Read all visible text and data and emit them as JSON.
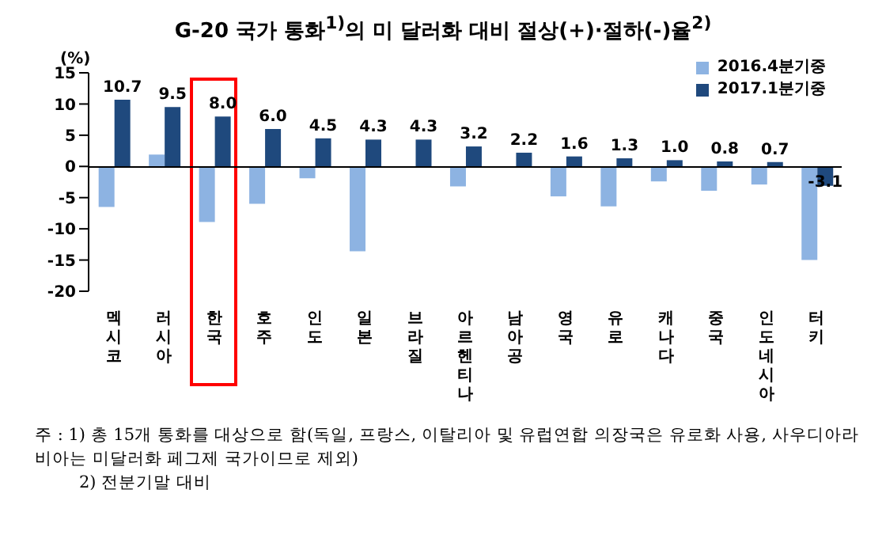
{
  "chart_data": {
    "type": "bar",
    "title": "G-20 국가 통화$^{1)}$의 미 달러화 대비 절상(+)·절하(-)율$^{2)}$",
    "ylabel": "(%)",
    "categories": [
      "멕시코",
      "러시아",
      "한국",
      "호주",
      "인도",
      "일본",
      "브라질",
      "아르헨티나",
      "남아공",
      "영국",
      "유로",
      "캐나다",
      "중국",
      "인도네시아",
      "터키"
    ],
    "series": [
      {
        "name": "2016.4분기중",
        "color": "#8db3e2",
        "values": [
          -6.5,
          1.9,
          -8.9,
          -6.0,
          -1.9,
          -13.6,
          null,
          -3.2,
          0,
          -4.8,
          -6.4,
          -2.4,
          -3.9,
          -2.9,
          -15.0
        ]
      },
      {
        "name": "2017.1분기중",
        "color": "#1f497d",
        "values": [
          10.7,
          9.5,
          8.0,
          6.0,
          4.5,
          4.3,
          4.3,
          3.2,
          2.2,
          1.6,
          1.3,
          1.0,
          0.8,
          0.7,
          -3.1
        ],
        "value_labels": [
          "10.7",
          "9.5",
          "8.0",
          "6.0",
          "4.5",
          "4.3",
          "4.3",
          "3.2",
          "2.2",
          "1.6",
          "1.3",
          "1.0",
          "0.8",
          "0.7",
          "-3.1"
        ]
      }
    ],
    "ylim": [
      -20,
      15
    ],
    "yticks": [
      -20,
      -15,
      -10,
      -5,
      0,
      5,
      10,
      15
    ],
    "grid": false,
    "legend": "top right",
    "annotations": [
      "주 : 1) 총 15개 통화를 대상으로 함(독일, 프랑스, 이탈리아 및 유럽연합 의장국은 유로화 사용, 사우디아라비아는 미달러화 페그제 국가이므로 제외)",
      "2) 전분기말 대비"
    ]
  }
}
